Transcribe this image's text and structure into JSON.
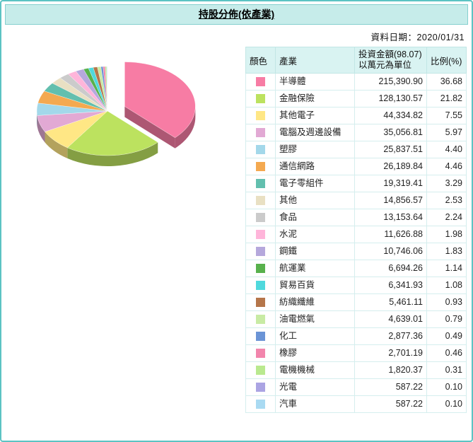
{
  "title": "持股分佈(依產業)",
  "date_label": "資料日期：2020/01/31",
  "table": {
    "headers": {
      "color": "顏色",
      "industry": "產業",
      "amount_line1": "投資金額(98.07)",
      "amount_line2": "以萬元為單位",
      "ratio": "比例(%)"
    }
  },
  "chart_data": {
    "type": "pie",
    "title": "持股分佈(依產業)",
    "style": "3d-exploded",
    "start_angle_deg": 0,
    "direction": "clockwise",
    "exploded_index": 0,
    "labels": [
      "半導體",
      "金融保險",
      "其他電子",
      "電腦及週邊設備",
      "塑膠",
      "通信網路",
      "電子零組件",
      "其他",
      "食品",
      "水泥",
      "鋼鐵",
      "航運業",
      "貿易百貨",
      "紡織纖維",
      "油電燃氣",
      "化工",
      "橡膠",
      "電機機械",
      "光電",
      "汽車"
    ],
    "amounts": [
      "215,390.90",
      "128,130.57",
      "44,334.82",
      "35,056.81",
      "25,837.51",
      "26,189.84",
      "19,319.41",
      "14,856.57",
      "13,153.64",
      "11,626.88",
      "10,746.06",
      "6,694.26",
      "6,341.93",
      "5,461.11",
      "4,639.01",
      "2,877.36",
      "2,701.19",
      "1,820.37",
      "587.22",
      "587.22"
    ],
    "ratios": [
      "36.68",
      "21.82",
      "7.55",
      "5.97",
      "4.40",
      "4.46",
      "3.29",
      "2.53",
      "2.24",
      "1.98",
      "1.83",
      "1.14",
      "1.08",
      "0.93",
      "0.79",
      "0.49",
      "0.46",
      "0.31",
      "0.10",
      "0.10"
    ],
    "colors": [
      "#F77CA4",
      "#BCE25F",
      "#FFE785",
      "#E2A9D4",
      "#A3D8EA",
      "#F4A950",
      "#62BFAE",
      "#E9E0C3",
      "#CBCBCB",
      "#FFB5DA",
      "#B5A8DC",
      "#58B14C",
      "#4FD9DD",
      "#B5764A",
      "#C8EBA4",
      "#6B94D6",
      "#F285AC",
      "#B9E98F",
      "#ABA4E3",
      "#A9DAF2"
    ]
  }
}
